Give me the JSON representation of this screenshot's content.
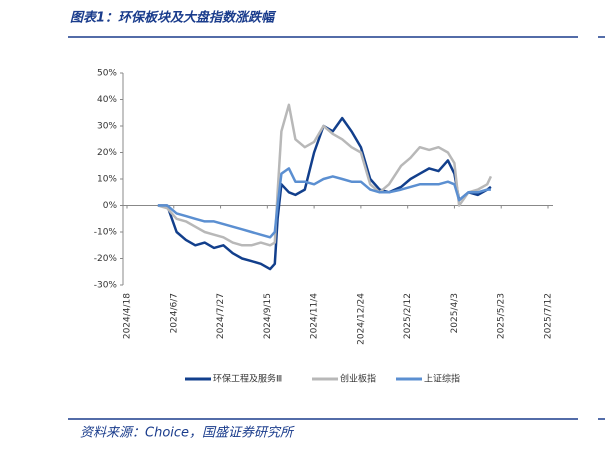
{
  "header": {
    "title": "图表1：环保板块及大盘指数涨跌幅"
  },
  "chart_data": {
    "type": "line",
    "x": [
      "2024/5/21",
      "2024/5/31",
      "2024/6/10",
      "2024/6/20",
      "2024/6/30",
      "2024/7/10",
      "2024/7/20",
      "2024/7/30",
      "2024/8/9",
      "2024/8/19",
      "2024/8/29",
      "2024/9/8",
      "2024/9/18",
      "2024/9/23",
      "2024/9/26",
      "2024/9/30",
      "2024/10/8",
      "2024/10/15",
      "2024/10/25",
      "2024/11/4",
      "2024/11/14",
      "2024/11/24",
      "2024/12/4",
      "2024/12/14",
      "2024/12/24",
      "2025/1/3",
      "2025/1/13",
      "2025/1/23",
      "2025/2/5",
      "2025/2/15",
      "2025/2/25",
      "2025/3/7",
      "2025/3/17",
      "2025/3/27",
      "2025/4/3",
      "2025/4/8",
      "2025/4/18",
      "2025/4/28",
      "2025/5/8",
      "2025/5/12"
    ],
    "series": [
      {
        "name": "环保工程及服务Ⅲ",
        "color": "#123f8c",
        "values": [
          0,
          0,
          -10,
          -13,
          -15,
          -14,
          -16,
          -15,
          -18,
          -20,
          -21,
          -22,
          -24,
          -22,
          -5,
          8,
          5,
          4,
          6,
          20,
          30,
          28,
          33,
          28,
          22,
          10,
          6,
          5,
          7,
          10,
          12,
          14,
          13,
          17,
          12,
          2,
          5,
          4,
          6,
          7
        ]
      },
      {
        "name": "创业板指",
        "color": "#b8b8b8",
        "values": [
          0,
          -1,
          -5,
          -6,
          -8,
          -10,
          -11,
          -12,
          -14,
          -15,
          -15,
          -14,
          -15,
          -14,
          5,
          28,
          38,
          25,
          22,
          24,
          30,
          27,
          25,
          22,
          20,
          8,
          5,
          8,
          15,
          18,
          22,
          21,
          22,
          20,
          16,
          0,
          5,
          6,
          8,
          11
        ]
      },
      {
        "name": "上证综指",
        "color": "#5b8fd1",
        "values": [
          0,
          0,
          -3,
          -4,
          -5,
          -6,
          -6,
          -7,
          -8,
          -9,
          -10,
          -11,
          -12,
          -10,
          0,
          12,
          14,
          9,
          9,
          8,
          10,
          11,
          10,
          9,
          9,
          6,
          5,
          5,
          6,
          7,
          8,
          8,
          8,
          9,
          8,
          2,
          5,
          5,
          6,
          6
        ]
      }
    ],
    "ylim": [
      -30,
      50
    ],
    "yticks": [
      {
        "value": -30,
        "label": "-30%"
      },
      {
        "value": -20,
        "label": "-20%"
      },
      {
        "value": -10,
        "label": "-10%"
      },
      {
        "value": 0,
        "label": "0%"
      },
      {
        "value": 10,
        "label": "10%"
      },
      {
        "value": 20,
        "label": "20%"
      },
      {
        "value": 30,
        "label": "30%"
      },
      {
        "value": 40,
        "label": "40%"
      },
      {
        "value": 50,
        "label": "50%"
      }
    ],
    "xlim": [
      "2024/4/18",
      "2025/7/12"
    ],
    "xticks": [
      "2024/4/18",
      "2024/6/7",
      "2024/7/27",
      "2024/9/15",
      "2024/11/4",
      "2024/12/24",
      "2025/2/12",
      "2025/4/3",
      "2025/5/23",
      "2025/7/12"
    ],
    "legend": "bottom"
  },
  "footer": {
    "source": "资料来源：Choice，国盛证券研究所"
  }
}
